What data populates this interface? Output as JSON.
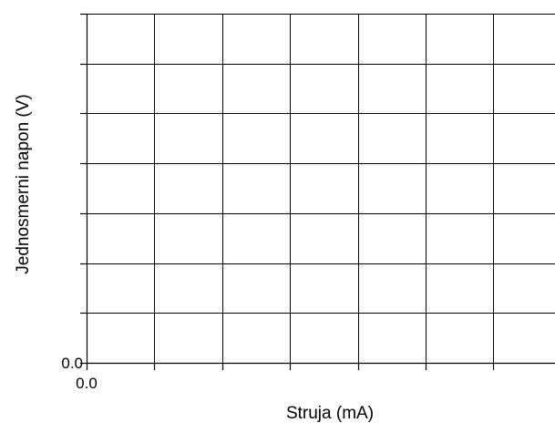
{
  "chart_data": {
    "type": "line",
    "title": "",
    "xlabel": "Struja (mA)",
    "ylabel": "Jednosmerni napon (V)",
    "x_tick_labels": [
      "0.0",
      "",
      "",
      "",
      "",
      "",
      "",
      ""
    ],
    "y_tick_labels": [
      "0.0",
      "",
      "",
      "",
      "",
      "",
      "",
      ""
    ],
    "x_divisions": 7,
    "y_divisions": 7,
    "grid": true,
    "legend": "none",
    "series": [],
    "colors": {
      "grid": "#000000",
      "axis": "#000000",
      "background": "#ffffff"
    }
  }
}
